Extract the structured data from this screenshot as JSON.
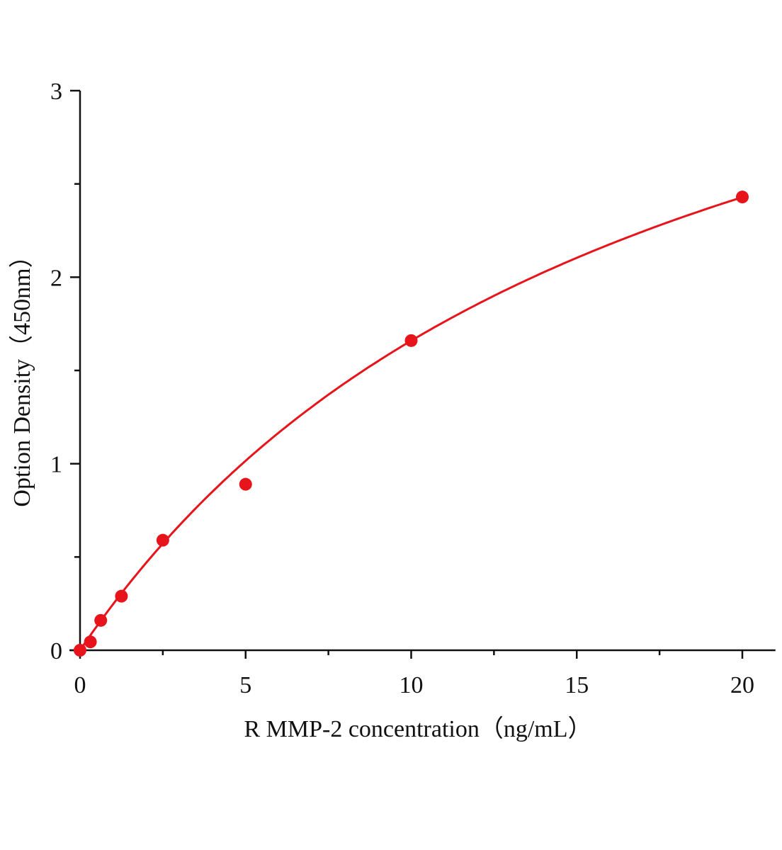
{
  "chart_data": {
    "type": "scatter",
    "title": "",
    "xlabel": "R MMP-2  concentration（ng/mL）",
    "ylabel": "Option Density（450nm）",
    "xlim": [
      0,
      21
    ],
    "ylim": [
      0,
      3
    ],
    "x_ticks": [
      0,
      5,
      10,
      15,
      20
    ],
    "y_ticks": [
      0,
      1,
      2,
      3
    ],
    "x_minor_step": 2.5,
    "y_minor_step": 0.5,
    "grid": false,
    "legend": "none",
    "series": [
      {
        "x": [
          0,
          0.3125,
          0.625,
          1.25,
          2.5,
          5,
          10,
          20
        ],
        "y": [
          0,
          0.045,
          0.16,
          0.29,
          0.59,
          0.89,
          1.66,
          2.43
        ],
        "marker": "circle",
        "fit_line": true,
        "color": "#e8141b"
      }
    ]
  }
}
